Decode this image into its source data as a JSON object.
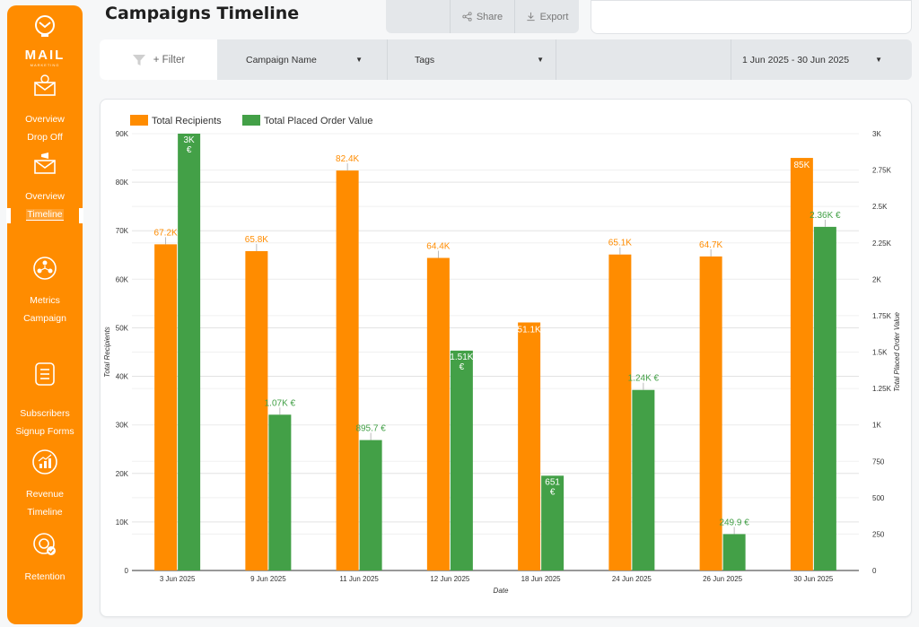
{
  "sidebar": {
    "logo_text": "MAIL",
    "logo_sub": "MARKETING",
    "items": [
      {
        "line1": "Overview",
        "line2": "Drop Off"
      },
      {
        "line1": "Overview",
        "line2": "Timeline"
      },
      {
        "line1": "Metrics",
        "line2": "Campaign"
      },
      {
        "line1": "Subscribers",
        "line2": "Signup Forms"
      },
      {
        "line1": "Revenue",
        "line2": "Timeline"
      },
      {
        "line1": "Retention",
        "line2": ""
      }
    ]
  },
  "header": {
    "title": "Campaigns Timeline",
    "share_label": "Share",
    "export_label": "Export"
  },
  "filters": {
    "filter_label": "+ Filter",
    "campaign_name_label": "Campaign Name",
    "tags_label": "Tags",
    "date_range_label": "1 Jun 2025 - 30 Jun 2025"
  },
  "colors": {
    "recipients": "#ff8c00",
    "order_value": "#43a047",
    "accent": "#ff8c00"
  },
  "chart_data": {
    "type": "bar",
    "xlabel": "Date",
    "ylabel": "Total Recipients",
    "y2label": "Total Placed Order Value",
    "categories": [
      "3 Jun 2025",
      "9 Jun 2025",
      "11 Jun 2025",
      "12 Jun 2025",
      "18 Jun 2025",
      "24 Jun 2025",
      "26 Jun 2025",
      "30 Jun 2025"
    ],
    "ylim": [
      0,
      90000
    ],
    "y2lim": [
      0,
      3000
    ],
    "y_ticks": [
      "0",
      "10K",
      "20K",
      "30K",
      "40K",
      "50K",
      "60K",
      "70K",
      "80K",
      "90K"
    ],
    "y2_ticks": [
      "0",
      "250",
      "500",
      "750",
      "1K",
      "1.25K",
      "1.5K",
      "1.75K",
      "2K",
      "2.25K",
      "2.5K",
      "2.75K",
      "3K"
    ],
    "legend_position": "top-left",
    "grid": true,
    "series": [
      {
        "name": "Total Recipients",
        "axis": "left",
        "values": [
          67200,
          65800,
          82400,
          64400,
          51100,
          65100,
          64700,
          85000
        ],
        "labels": [
          "67.2K",
          "65.8K",
          "82.4K",
          "64.4K",
          "51.1K",
          "65.1K",
          "64.7K",
          "85K"
        ]
      },
      {
        "name": "Total Placed Order Value",
        "axis": "right",
        "values": [
          3000,
          1070,
          895.7,
          1510,
          651,
          1240,
          249.9,
          2360
        ],
        "labels": [
          "3K €",
          "1.07K €",
          "895.7 €",
          "1.51K €",
          "651 €",
          "1.24K €",
          "249.9 €",
          "2.36K €"
        ]
      }
    ]
  }
}
